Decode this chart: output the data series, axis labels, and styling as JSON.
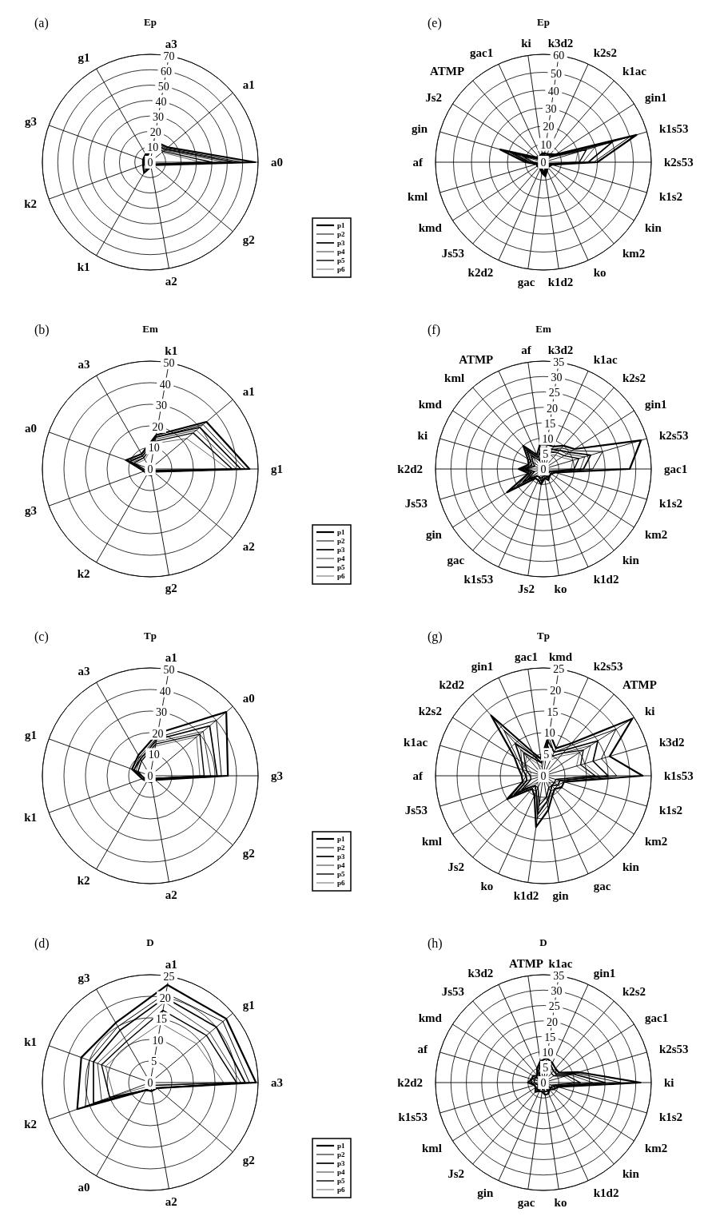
{
  "chart_data": [
    {
      "type": "radar",
      "title": "Ep",
      "annotations": [
        "(a)"
      ],
      "categories": [
        "a3",
        "a1",
        "a0",
        "g2",
        "a2",
        "k1",
        "k2",
        "g3",
        "g1"
      ],
      "ylim": [
        0,
        70
      ],
      "yticks": [
        0,
        10,
        20,
        30,
        40,
        50,
        60,
        70
      ],
      "grid": true,
      "legend": "right",
      "marker": "none",
      "line_style": "solid",
      "series": [
        {
          "name": "p1",
          "color": "#000000",
          "values": [
            14,
            15,
            68,
            3,
            3,
            8,
            5,
            5,
            6
          ]
        },
        {
          "name": "p2",
          "color": "#000000",
          "values": [
            13,
            14,
            60,
            3,
            3,
            6,
            4,
            4,
            5
          ]
        },
        {
          "name": "p3",
          "color": "#000000",
          "values": [
            12,
            13,
            55,
            2,
            2,
            5,
            4,
            4,
            5
          ]
        },
        {
          "name": "p4",
          "color": "#000000",
          "values": [
            12,
            12,
            49,
            2,
            2,
            5,
            3,
            4,
            4
          ]
        },
        {
          "name": "p5",
          "color": "#000000",
          "values": [
            11,
            11,
            40,
            2,
            2,
            4,
            3,
            3,
            4
          ]
        },
        {
          "name": "p6",
          "color": "#000000",
          "values": [
            10,
            10,
            33,
            2,
            2,
            4,
            3,
            3,
            4
          ]
        }
      ]
    },
    {
      "type": "radar",
      "title": "Em",
      "annotations": [
        "(b)"
      ],
      "categories": [
        "k1",
        "a1",
        "g1",
        "a2",
        "g2",
        "k2",
        "g3",
        "a0",
        "a3"
      ],
      "ylim": [
        0,
        50
      ],
      "yticks": [
        0,
        10,
        20,
        30,
        40,
        50
      ],
      "grid": true,
      "legend": "right",
      "marker": "none",
      "line_style": "solid",
      "series": [
        {
          "name": "p1",
          "color": "#000000",
          "values": [
            16,
            34,
            46,
            2,
            3,
            3,
            3,
            12,
            8
          ]
        },
        {
          "name": "p2",
          "color": "#000000",
          "values": [
            15,
            32,
            44,
            2,
            3,
            3,
            3,
            11,
            7
          ]
        },
        {
          "name": "p3",
          "color": "#000000",
          "values": [
            15,
            30,
            42,
            2,
            2,
            3,
            3,
            10,
            7
          ]
        },
        {
          "name": "p4",
          "color": "#000000",
          "values": [
            14,
            28,
            40,
            2,
            2,
            2,
            2,
            9,
            6
          ]
        },
        {
          "name": "p5",
          "color": "#000000",
          "values": [
            13,
            26,
            38,
            1,
            2,
            2,
            2,
            8,
            6
          ]
        },
        {
          "name": "p6",
          "color": "#000000",
          "values": [
            12,
            22,
            36,
            1,
            2,
            2,
            2,
            7,
            5
          ]
        }
      ]
    },
    {
      "type": "radar",
      "title": "Tp",
      "annotations": [
        "(c)"
      ],
      "categories": [
        "a1",
        "a0",
        "g3",
        "g2",
        "a2",
        "k2",
        "k1",
        "g1",
        "a3"
      ],
      "ylim": [
        0,
        50
      ],
      "yticks": [
        0,
        10,
        20,
        30,
        40,
        50
      ],
      "grid": true,
      "legend": "right",
      "marker": "none",
      "line_style": "solid",
      "series": [
        {
          "name": "p1",
          "color": "#000000",
          "values": [
            20,
            46,
            36,
            3,
            3,
            3,
            4,
            9,
            11
          ]
        },
        {
          "name": "p2",
          "color": "#000000",
          "values": [
            18,
            40,
            33,
            3,
            3,
            3,
            4,
            8,
            10
          ]
        },
        {
          "name": "p3",
          "color": "#000000",
          "values": [
            17,
            36,
            31,
            2,
            2,
            3,
            3,
            8,
            9
          ]
        },
        {
          "name": "p4",
          "color": "#000000",
          "values": [
            16,
            32,
            28,
            2,
            2,
            2,
            3,
            7,
            9
          ]
        },
        {
          "name": "p5",
          "color": "#000000",
          "values": [
            15,
            30,
            25,
            2,
            2,
            2,
            3,
            6,
            8
          ]
        },
        {
          "name": "p6",
          "color": "#000000",
          "values": [
            14,
            28,
            23,
            2,
            2,
            2,
            3,
            6,
            8
          ]
        }
      ]
    },
    {
      "type": "radar",
      "title": "D",
      "annotations": [
        "(d)"
      ],
      "categories": [
        "a1",
        "g1",
        "a3",
        "g2",
        "a2",
        "a0",
        "k2",
        "k1",
        "g3"
      ],
      "ylim": [
        0,
        25
      ],
      "yticks": [
        0,
        5,
        10,
        15,
        20,
        25
      ],
      "grid": true,
      "legend": "right",
      "marker": "none",
      "line_style": "solid",
      "series": [
        {
          "name": "p1",
          "color": "#000000",
          "values": [
            23,
            23,
            24.5,
            2,
            2,
            2,
            18,
            17,
            16
          ]
        },
        {
          "name": "p2",
          "color": "#000000",
          "values": [
            21,
            22,
            23,
            2,
            2,
            2,
            16,
            15,
            15
          ]
        },
        {
          "name": "p3",
          "color": "#000000",
          "values": [
            20,
            20,
            22,
            2,
            2,
            2,
            14,
            14,
            14
          ]
        },
        {
          "name": "p4",
          "color": "#000000",
          "values": [
            19,
            18,
            21,
            2,
            2,
            2,
            12,
            13,
            12
          ]
        },
        {
          "name": "p5",
          "color": "#000000",
          "values": [
            17,
            17,
            20,
            1,
            1,
            2,
            10,
            12,
            11
          ]
        },
        {
          "name": "p6",
          "color": "#000000",
          "values": [
            14,
            14,
            17,
            1,
            1,
            1,
            9,
            11,
            10
          ]
        }
      ]
    },
    {
      "type": "radar",
      "title": "Ep",
      "annotations": [
        "(e)"
      ],
      "categories": [
        "k3d2",
        "k2s2",
        "k1ac",
        "gin1",
        "k1s53",
        "k2s53",
        "k1s2",
        "kin",
        "km2",
        "ko",
        "k1d2",
        "gac",
        "k2d2",
        "Js53",
        "kmd",
        "kml",
        "af",
        "gin",
        "Js2",
        "ATMP",
        "gac1",
        "ki"
      ],
      "ylim": [
        0,
        60
      ],
      "yticks": [
        0,
        10,
        20,
        30,
        40,
        50,
        60
      ],
      "grid": true,
      "marker": "none",
      "line_style": "solid",
      "series": [
        {
          "color": "#000000",
          "values": [
            5,
            5,
            6,
            8,
            54,
            30,
            5,
            4,
            4,
            5,
            8,
            6,
            4,
            4,
            4,
            4,
            10,
            25,
            5,
            4,
            4,
            5
          ]
        },
        {
          "color": "#000000",
          "values": [
            5,
            5,
            5,
            7,
            50,
            28,
            4,
            4,
            4,
            4,
            7,
            5,
            4,
            4,
            4,
            4,
            9,
            20,
            5,
            4,
            4,
            5
          ]
        },
        {
          "color": "#000000",
          "values": [
            4,
            4,
            5,
            7,
            40,
            25,
            4,
            4,
            3,
            4,
            7,
            5,
            3,
            3,
            3,
            3,
            8,
            18,
            4,
            3,
            3,
            4
          ]
        },
        {
          "color": "#000000",
          "values": [
            4,
            4,
            5,
            6,
            30,
            22,
            4,
            3,
            3,
            4,
            6,
            5,
            3,
            3,
            3,
            3,
            7,
            15,
            4,
            3,
            3,
            4
          ]
        },
        {
          "color": "#000000",
          "values": [
            3,
            4,
            4,
            6,
            25,
            20,
            3,
            3,
            3,
            3,
            6,
            4,
            3,
            3,
            3,
            3,
            6,
            12,
            3,
            3,
            3,
            3
          ]
        },
        {
          "color": "#000000",
          "values": [
            3,
            3,
            4,
            5,
            20,
            18,
            3,
            3,
            2,
            3,
            5,
            4,
            2,
            2,
            2,
            2,
            5,
            10,
            3,
            2,
            2,
            3
          ]
        }
      ]
    },
    {
      "type": "radar",
      "title": "Em",
      "annotations": [
        "(f)"
      ],
      "categories": [
        "k3d2",
        "k1ac",
        "k2s2",
        "gin1",
        "k2s53",
        "gac1",
        "k1s2",
        "km2",
        "kin",
        "k1d2",
        "ko",
        "Js2",
        "k1s53",
        "gac",
        "gin",
        "Js53",
        "k2d2",
        "ki",
        "kmd",
        "kml",
        "ATMP",
        "af"
      ],
      "ylim": [
        0,
        35
      ],
      "yticks": [
        0,
        5,
        10,
        15,
        20,
        25,
        30,
        35
      ],
      "grid": true,
      "marker": "none",
      "line_style": "solid",
      "series": [
        {
          "color": "#000000",
          "values": [
            8,
            8,
            10,
            12,
            33,
            28,
            4,
            3,
            3,
            4,
            3,
            5,
            4,
            4,
            14,
            5,
            8,
            5,
            6,
            10,
            5,
            8
          ]
        },
        {
          "color": "#000000",
          "values": [
            7,
            7,
            9,
            11,
            20,
            16,
            4,
            3,
            3,
            4,
            3,
            4,
            4,
            4,
            10,
            5,
            7,
            5,
            5,
            9,
            4,
            7
          ]
        },
        {
          "color": "#000000",
          "values": [
            7,
            7,
            8,
            10,
            16,
            13,
            3,
            3,
            3,
            3,
            3,
            4,
            3,
            3,
            8,
            4,
            7,
            4,
            5,
            8,
            4,
            6
          ]
        },
        {
          "color": "#000000",
          "values": [
            6,
            6,
            8,
            9,
            14,
            12,
            3,
            2,
            2,
            3,
            2,
            4,
            3,
            3,
            7,
            4,
            6,
            4,
            4,
            7,
            4,
            6
          ]
        },
        {
          "color": "#000000",
          "values": [
            6,
            6,
            7,
            8,
            12,
            10,
            3,
            2,
            2,
            3,
            2,
            3,
            3,
            3,
            6,
            3,
            6,
            3,
            4,
            6,
            3,
            5
          ]
        },
        {
          "color": "#000000",
          "values": [
            5,
            5,
            6,
            7,
            10,
            9,
            2,
            2,
            2,
            2,
            2,
            3,
            2,
            2,
            5,
            3,
            5,
            3,
            3,
            5,
            3,
            5
          ]
        }
      ]
    },
    {
      "type": "radar",
      "title": "Tp",
      "annotations": [
        "(g)"
      ],
      "categories": [
        "kmd",
        "k2s53",
        "ATMP",
        "ki",
        "k3d2",
        "k1s53",
        "k1s2",
        "km2",
        "kin",
        "gac",
        "gin",
        "k1d2",
        "ko",
        "Js2",
        "kml",
        "Js53",
        "af",
        "k1ac",
        "k2s2",
        "k2d2",
        "gin1",
        "gac1"
      ],
      "ylim": [
        0,
        25
      ],
      "yticks": [
        0,
        5,
        10,
        15,
        20,
        25
      ],
      "grid": true,
      "marker": "none",
      "line_style": "solid",
      "series": [
        {
          "color": "#000000",
          "values": [
            10,
            7,
            10,
            24.5,
            16,
            23,
            5,
            5,
            4,
            5,
            8,
            12,
            5,
            4,
            10,
            5,
            5,
            6,
            8,
            18.5,
            6,
            4
          ]
        },
        {
          "color": "#000000",
          "values": [
            9,
            6,
            9,
            20,
            14,
            17,
            5,
            4,
            4,
            4,
            7,
            10,
            4,
            4,
            9,
            5,
            4,
            5,
            7,
            14,
            5,
            4
          ]
        },
        {
          "color": "#000000",
          "values": [
            8,
            6,
            8,
            15,
            12,
            15,
            4,
            4,
            3,
            4,
            6,
            9,
            4,
            3,
            8,
            4,
            4,
            5,
            6,
            10,
            5,
            3
          ]
        },
        {
          "color": "#000000",
          "values": [
            7,
            5,
            7,
            13,
            10,
            13,
            4,
            3,
            3,
            4,
            6,
            8,
            4,
            3,
            7,
            4,
            4,
            4,
            6,
            8,
            4,
            3
          ]
        },
        {
          "color": "#000000",
          "values": [
            7,
            5,
            7,
            11,
            9,
            12,
            3,
            3,
            3,
            3,
            5,
            7,
            3,
            3,
            6,
            3,
            3,
            4,
            5,
            7,
            4,
            3
          ]
        },
        {
          "color": "#000000",
          "values": [
            6,
            4,
            6,
            10,
            8,
            11,
            3,
            3,
            2,
            3,
            5,
            6,
            3,
            2,
            5,
            3,
            3,
            3,
            5,
            6,
            3,
            2
          ]
        }
      ]
    },
    {
      "type": "radar",
      "title": "D",
      "annotations": [
        "(h)"
      ],
      "categories": [
        "k1ac",
        "gin1",
        "k2s2",
        "gac1",
        "k2s53",
        "ki",
        "k1s2",
        "km2",
        "kin",
        "k1d2",
        "ko",
        "gac",
        "gin",
        "Js2",
        "kml",
        "k1s53",
        "k2d2",
        "af",
        "kmd",
        "Js53",
        "k3d2",
        "ATMP"
      ],
      "ylim": [
        0,
        35
      ],
      "yticks": [
        0,
        5,
        10,
        15,
        20,
        25,
        30,
        35
      ],
      "grid": true,
      "marker": "none",
      "line_style": "solid",
      "series": [
        {
          "color": "#000000",
          "values": [
            8,
            7,
            6,
            6,
            12,
            31.5,
            5,
            4,
            3,
            4,
            4,
            3,
            3,
            4,
            3,
            3,
            5,
            4,
            4,
            3,
            5,
            7
          ]
        },
        {
          "color": "#000000",
          "values": [
            7,
            7,
            6,
            5,
            11,
            25,
            4,
            4,
            3,
            4,
            4,
            3,
            3,
            4,
            3,
            3,
            5,
            4,
            4,
            3,
            5,
            6
          ]
        },
        {
          "color": "#000000",
          "values": [
            7,
            6,
            5,
            5,
            10,
            20,
            4,
            3,
            3,
            3,
            3,
            3,
            3,
            3,
            3,
            3,
            4,
            4,
            3,
            3,
            4,
            6
          ]
        },
        {
          "color": "#000000",
          "values": [
            6,
            6,
            5,
            5,
            9,
            16,
            4,
            3,
            2,
            3,
            3,
            2,
            2,
            3,
            2,
            2,
            4,
            3,
            3,
            2,
            4,
            5
          ]
        },
        {
          "color": "#000000",
          "values": [
            6,
            5,
            4,
            4,
            8,
            12,
            3,
            3,
            2,
            3,
            3,
            2,
            2,
            3,
            2,
            2,
            3,
            3,
            3,
            2,
            3,
            5
          ]
        },
        {
          "color": "#000000",
          "values": [
            5,
            5,
            4,
            4,
            7,
            10,
            3,
            2,
            2,
            2,
            2,
            2,
            2,
            2,
            2,
            2,
            3,
            3,
            2,
            2,
            3,
            4
          ]
        }
      ]
    }
  ]
}
